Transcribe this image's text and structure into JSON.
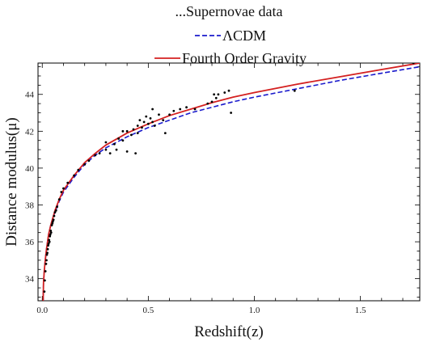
{
  "chart_data": {
    "type": "scatter",
    "title": "",
    "xlabel": "Redshift(z)",
    "ylabel": "Distance modulus(μ)",
    "xlim": [
      -0.02,
      1.78
    ],
    "ylim": [
      32.8,
      45.7
    ],
    "xticks": [
      0.0,
      0.5,
      1.0,
      1.5
    ],
    "xtick_labels": [
      "0.0",
      "0.5",
      "1.0",
      "1.5"
    ],
    "yticks": [
      34,
      36,
      38,
      40,
      42,
      44
    ],
    "ytick_labels": [
      "34",
      "36",
      "38",
      "40",
      "42",
      "44"
    ],
    "grid": false,
    "legend_position": "top-center",
    "legend": [
      {
        "label": "...Supernovae data",
        "marker": "...",
        "style": "points",
        "color": "#000000"
      },
      {
        "label": "ΛCDM",
        "marker": "--",
        "style": "dashed",
        "color": "#1a1acc"
      },
      {
        "label": "Fourth Order Gravity",
        "marker": "-",
        "style": "solid",
        "color": "#d42020"
      }
    ],
    "series": [
      {
        "name": "Supernovae data",
        "kind": "points",
        "color": "#000000",
        "points": [
          [
            0.01,
            33.3
          ],
          [
            0.012,
            33.9
          ],
          [
            0.015,
            34.4
          ],
          [
            0.018,
            34.8
          ],
          [
            0.02,
            35.0
          ],
          [
            0.022,
            35.3
          ],
          [
            0.024,
            35.4
          ],
          [
            0.026,
            35.6
          ],
          [
            0.028,
            35.8
          ],
          [
            0.03,
            35.9
          ],
          [
            0.032,
            36.1
          ],
          [
            0.034,
            36.0
          ],
          [
            0.036,
            36.3
          ],
          [
            0.038,
            36.4
          ],
          [
            0.04,
            36.6
          ],
          [
            0.042,
            36.5
          ],
          [
            0.045,
            36.9
          ],
          [
            0.048,
            37.0
          ],
          [
            0.05,
            37.1
          ],
          [
            0.053,
            37.2
          ],
          [
            0.056,
            37.4
          ],
          [
            0.06,
            37.6
          ],
          [
            0.065,
            37.7
          ],
          [
            0.07,
            37.9
          ],
          [
            0.08,
            38.3
          ],
          [
            0.09,
            38.7
          ],
          [
            0.1,
            38.9
          ],
          [
            0.12,
            39.2
          ],
          [
            0.15,
            39.6
          ],
          [
            0.17,
            39.9
          ],
          [
            0.2,
            40.2
          ],
          [
            0.22,
            40.4
          ],
          [
            0.25,
            40.7
          ],
          [
            0.27,
            40.8
          ],
          [
            0.3,
            41.0
          ],
          [
            0.3,
            41.4
          ],
          [
            0.32,
            40.8
          ],
          [
            0.34,
            41.3
          ],
          [
            0.35,
            41.0
          ],
          [
            0.36,
            41.6
          ],
          [
            0.38,
            41.5
          ],
          [
            0.38,
            42.0
          ],
          [
            0.4,
            42.0
          ],
          [
            0.4,
            40.9
          ],
          [
            0.42,
            41.8
          ],
          [
            0.43,
            42.1
          ],
          [
            0.44,
            40.8
          ],
          [
            0.45,
            42.3
          ],
          [
            0.45,
            41.9
          ],
          [
            0.46,
            42.6
          ],
          [
            0.47,
            42.2
          ],
          [
            0.48,
            42.5
          ],
          [
            0.49,
            42.8
          ],
          [
            0.5,
            42.4
          ],
          [
            0.51,
            42.7
          ],
          [
            0.52,
            42.5
          ],
          [
            0.52,
            43.2
          ],
          [
            0.53,
            42.3
          ],
          [
            0.55,
            42.9
          ],
          [
            0.57,
            42.6
          ],
          [
            0.58,
            41.9
          ],
          [
            0.6,
            42.9
          ],
          [
            0.62,
            43.1
          ],
          [
            0.65,
            43.2
          ],
          [
            0.68,
            43.3
          ],
          [
            0.72,
            43.2
          ],
          [
            0.78,
            43.5
          ],
          [
            0.8,
            43.6
          ],
          [
            0.81,
            44.0
          ],
          [
            0.82,
            43.8
          ],
          [
            0.83,
            44.0
          ],
          [
            0.86,
            44.1
          ],
          [
            0.88,
            44.2
          ],
          [
            0.89,
            43.0
          ],
          [
            1.19,
            44.2
          ],
          [
            1.75,
            45.7
          ]
        ]
      },
      {
        "name": "ΛCDM",
        "kind": "line",
        "style": "dashed",
        "color": "#1a1acc",
        "points": [
          [
            0.004,
            32.7
          ],
          [
            0.006,
            33.8
          ],
          [
            0.01,
            34.5
          ],
          [
            0.015,
            35.1
          ],
          [
            0.02,
            35.6
          ],
          [
            0.03,
            36.4
          ],
          [
            0.04,
            36.9
          ],
          [
            0.05,
            37.3
          ],
          [
            0.06,
            37.6
          ],
          [
            0.08,
            38.2
          ],
          [
            0.1,
            38.7
          ],
          [
            0.15,
            39.5
          ],
          [
            0.2,
            40.2
          ],
          [
            0.25,
            40.7
          ],
          [
            0.3,
            41.1
          ],
          [
            0.4,
            41.7
          ],
          [
            0.5,
            42.2
          ],
          [
            0.6,
            42.6
          ],
          [
            0.7,
            43.0
          ],
          [
            0.8,
            43.3
          ],
          [
            0.9,
            43.6
          ],
          [
            1.0,
            43.85
          ],
          [
            1.2,
            44.3
          ],
          [
            1.4,
            44.75
          ],
          [
            1.6,
            45.15
          ],
          [
            1.78,
            45.5
          ]
        ]
      },
      {
        "name": "Fourth Order Gravity",
        "kind": "line",
        "style": "solid",
        "color": "#d42020",
        "points": [
          [
            0.004,
            32.7
          ],
          [
            0.006,
            33.8
          ],
          [
            0.01,
            34.5
          ],
          [
            0.015,
            35.1
          ],
          [
            0.02,
            35.6
          ],
          [
            0.03,
            36.4
          ],
          [
            0.04,
            36.9
          ],
          [
            0.05,
            37.3
          ],
          [
            0.06,
            37.7
          ],
          [
            0.08,
            38.3
          ],
          [
            0.1,
            38.8
          ],
          [
            0.15,
            39.6
          ],
          [
            0.2,
            40.3
          ],
          [
            0.25,
            40.8
          ],
          [
            0.3,
            41.25
          ],
          [
            0.4,
            41.9
          ],
          [
            0.5,
            42.4
          ],
          [
            0.6,
            42.85
          ],
          [
            0.7,
            43.2
          ],
          [
            0.8,
            43.55
          ],
          [
            0.9,
            43.85
          ],
          [
            1.0,
            44.1
          ],
          [
            1.2,
            44.55
          ],
          [
            1.4,
            44.95
          ],
          [
            1.6,
            45.35
          ],
          [
            1.78,
            45.7
          ]
        ]
      }
    ]
  }
}
